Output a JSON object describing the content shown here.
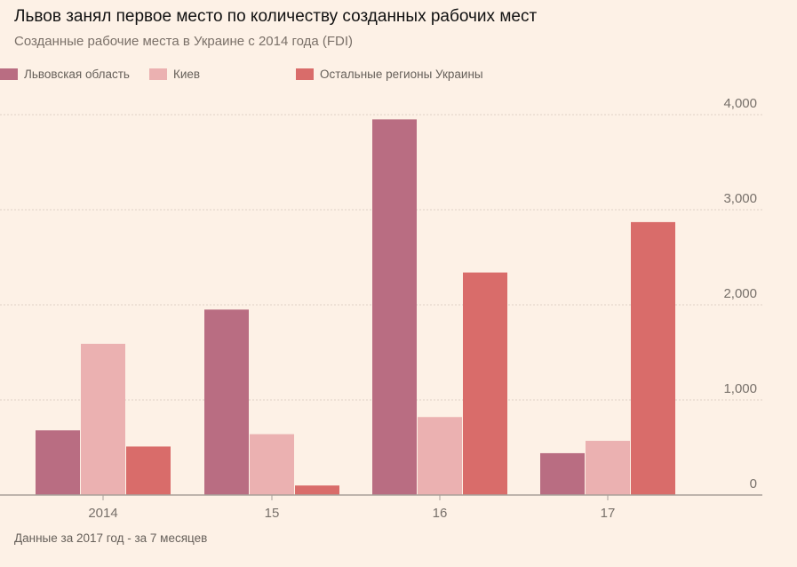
{
  "title": "Львов занял первое место по количеству созданных рабочих мест",
  "subtitle": "Созданные рабочие места в Украине с 2014 года (FDI)",
  "footnote": "Данные за 2017 год - за 7 месяцев",
  "colors": {
    "background": "#fdf1e6",
    "lviv": "#b96d82",
    "kyiv": "#ebb1b1",
    "other": "#d96c6a",
    "grid": "#e6d8cc",
    "axis": "#a9a099"
  },
  "chart_data": {
    "type": "bar",
    "categories": [
      "2014",
      "15",
      "16",
      "17"
    ],
    "series": [
      {
        "name": "Львовская область",
        "values": [
          680,
          1950,
          3950,
          440
        ]
      },
      {
        "name": "Киев",
        "values": [
          1590,
          640,
          820,
          570
        ]
      },
      {
        "name": "Остальные регионы Украины",
        "values": [
          510,
          100,
          2340,
          2870
        ]
      }
    ],
    "ylim": [
      0,
      4000
    ],
    "yticks": [
      0,
      1000,
      2000,
      3000,
      4000
    ],
    "ytick_labels": [
      "0",
      "1,000",
      "2,000",
      "3,000",
      "4,000"
    ],
    "y_axis_side": "right",
    "grid": "horizontal dotted",
    "legend_position": "top-left"
  }
}
